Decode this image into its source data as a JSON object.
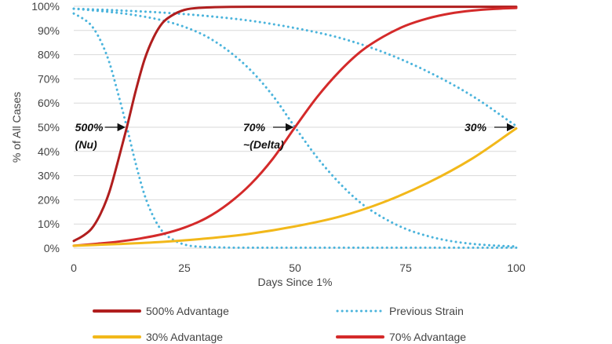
{
  "chart_data": {
    "type": "line",
    "title": "",
    "xlabel": "Days Since 1%",
    "ylabel": "% of All Cases",
    "xlim": [
      0,
      100
    ],
    "ylim": [
      0,
      100
    ],
    "x_ticks": [
      "0",
      "25",
      "50",
      "75",
      "100"
    ],
    "y_ticks": [
      "0%",
      "10%",
      "20%",
      "30%",
      "40%",
      "50%",
      "60%",
      "70%",
      "80%",
      "90%",
      "100%"
    ],
    "grid": "horizontal",
    "legend_position": "bottom",
    "legend": [
      {
        "label": "500% Advantage",
        "color": "#b01e1e",
        "style": "solid"
      },
      {
        "label": "Previous Strain",
        "color": "#4bb4dc",
        "style": "dotted"
      },
      {
        "label": "30% Advantage",
        "color": "#f2b81a",
        "style": "solid"
      },
      {
        "label": "70% Advantage",
        "color": "#d42a2a",
        "style": "solid"
      }
    ],
    "series": [
      {
        "name": "500% Advantage",
        "color": "#b01e1e",
        "style": "solid",
        "x": [
          0,
          2,
          4,
          6,
          8,
          10,
          12,
          14,
          16,
          18,
          20,
          22,
          25,
          30,
          40,
          60,
          80,
          100
        ],
        "y": [
          3,
          5,
          8,
          14,
          23,
          36,
          50,
          65,
          78,
          87,
          93,
          96,
          98.5,
          99.5,
          99.8,
          99.8,
          99.8,
          99.8
        ]
      },
      {
        "name": "Previous Strain (vs 500%)",
        "color": "#4bb4dc",
        "style": "dotted",
        "x": [
          0,
          2,
          4,
          6,
          8,
          10,
          12,
          14,
          16,
          18,
          20,
          22,
          25,
          30,
          40,
          60,
          80,
          100
        ],
        "y": [
          97,
          95,
          92,
          86,
          77,
          64,
          50,
          35,
          22,
          13,
          7,
          4,
          1.5,
          0.5,
          0.2,
          0.2,
          0.2,
          0.2
        ]
      },
      {
        "name": "70% Advantage",
        "color": "#d42a2a",
        "style": "solid",
        "x": [
          0,
          5,
          10,
          15,
          20,
          25,
          30,
          35,
          40,
          45,
          50,
          55,
          60,
          65,
          70,
          75,
          80,
          85,
          90,
          95,
          100
        ],
        "y": [
          1,
          1.8,
          2.7,
          4,
          5.8,
          8.5,
          12.5,
          18.5,
          26.5,
          37,
          50,
          62.5,
          73,
          81.5,
          87.5,
          92,
          95,
          97,
          98.2,
          98.9,
          99.3
        ]
      },
      {
        "name": "Previous Strain (vs 70%)",
        "color": "#4bb4dc",
        "style": "dotted",
        "x": [
          0,
          5,
          10,
          15,
          20,
          25,
          30,
          35,
          40,
          45,
          50,
          55,
          60,
          65,
          70,
          75,
          80,
          85,
          90,
          95,
          100
        ],
        "y": [
          99,
          98.2,
          97.3,
          96,
          94.2,
          91.5,
          87.5,
          81.5,
          73.5,
          63,
          50,
          37.5,
          27,
          18.5,
          12.5,
          8,
          5,
          3,
          1.8,
          1.1,
          0.7
        ]
      },
      {
        "name": "30% Advantage",
        "color": "#f2b81a",
        "style": "solid",
        "x": [
          0,
          10,
          20,
          30,
          40,
          50,
          60,
          70,
          80,
          90,
          100
        ],
        "y": [
          1,
          1.7,
          2.6,
          4,
          6,
          9,
          13,
          19,
          27,
          37,
          49.5
        ]
      },
      {
        "name": "Previous Strain (vs 30%)",
        "color": "#4bb4dc",
        "style": "dotted",
        "x": [
          0,
          10,
          20,
          30,
          40,
          50,
          60,
          70,
          80,
          90,
          100
        ],
        "y": [
          99,
          98.3,
          97.4,
          96,
          94,
          91,
          87,
          81,
          73,
          63,
          50.5
        ]
      }
    ],
    "annotations": [
      {
        "lines": [
          "500%",
          "(Nu)"
        ],
        "x": 12,
        "y": 50
      },
      {
        "lines": [
          "70%",
          "~(Delta)"
        ],
        "x": 50,
        "y": 50
      },
      {
        "lines": [
          "30%"
        ],
        "x": 100,
        "y": 50
      }
    ]
  }
}
